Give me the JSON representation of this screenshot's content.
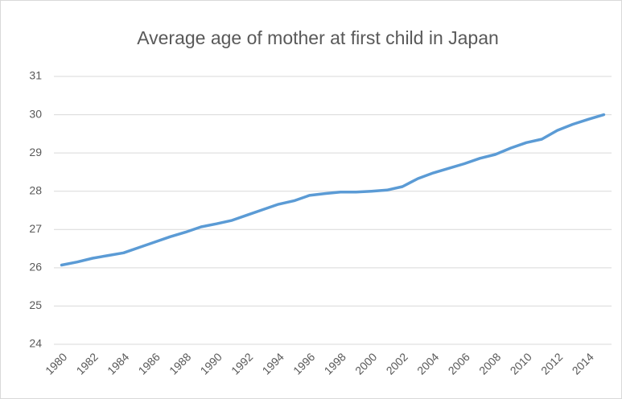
{
  "chart_data": {
    "type": "line",
    "title": "Average age of mother at first child in Japan",
    "categories": [
      "1980",
      null,
      "1982",
      null,
      "1984",
      null,
      "1986",
      null,
      "1988",
      null,
      "1990",
      null,
      "1992",
      null,
      "1994",
      null,
      "1996",
      null,
      "1998",
      null,
      "2000",
      null,
      "2002",
      null,
      "2004",
      null,
      "2006",
      null,
      "2008",
      null,
      "2010",
      null,
      "2012",
      null,
      "2014",
      null
    ],
    "series": [
      {
        "color": "#5b9bd5",
        "values": [
          26.07,
          26.15,
          26.25,
          26.32,
          26.39,
          26.53,
          26.67,
          26.81,
          26.93,
          27.07,
          27.15,
          27.24,
          27.38,
          27.52,
          27.66,
          27.75,
          27.89,
          27.94,
          27.98,
          27.98,
          28.0,
          28.03,
          28.12,
          28.33,
          28.48,
          28.6,
          28.72,
          28.86,
          28.96,
          29.13,
          29.27,
          29.36,
          29.59,
          29.75,
          29.88,
          30.0
        ]
      }
    ],
    "ylim": [
      24,
      31
    ],
    "yticks": [
      24,
      25,
      26,
      27,
      28,
      29,
      30,
      31
    ],
    "grid": true
  }
}
